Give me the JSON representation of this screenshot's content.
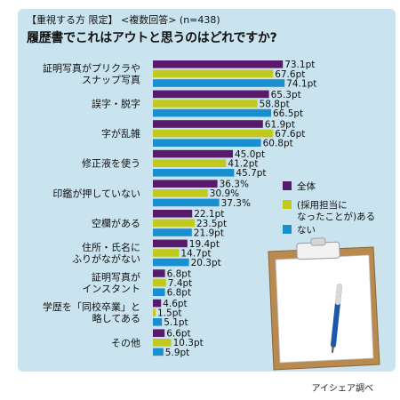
{
  "header": {
    "subhead": "【重視する方 限定】 <複数回答> (n=438)",
    "title": "履歴書でこれはアウトと思うのはどれですか?"
  },
  "footer": {
    "source": "アイシェア調べ"
  },
  "colors": {
    "panel": "#c9e3ef",
    "s1": "#5a1a6b",
    "s2": "#c2c81c",
    "s3": "#1a8fd0"
  },
  "chart_data": {
    "type": "bar",
    "orientation": "horizontal",
    "categories": [
      [
        "証明写真がプリクラや",
        "スナップ写真"
      ],
      [
        "誤字・脱字"
      ],
      [
        "字が乱雑"
      ],
      [
        "修正液を使う"
      ],
      [
        "印鑑が押していない"
      ],
      [
        "空欄がある"
      ],
      [
        "住所・氏名に",
        "ふりがながない"
      ],
      [
        "証明写真が",
        "インスタント"
      ],
      [
        "学歴を「同校卒業」と",
        "略してある"
      ],
      [
        "その他"
      ]
    ],
    "series": [
      {
        "name": "全体",
        "values": [
          73.1,
          65.3,
          61.9,
          45.0,
          36.3,
          22.1,
          19.4,
          6.8,
          4.6,
          6.6
        ],
        "labels": [
          "73.1pt",
          "65.3pt",
          "61.9pt",
          "45.0pt",
          "36.3%",
          "22.1pt",
          "19.4pt",
          "6.8pt",
          "4.6pt",
          "6.6pt"
        ]
      },
      {
        "name": "(採用担当に なったことが)ある",
        "values": [
          67.6,
          58.8,
          67.6,
          41.2,
          30.9,
          23.5,
          14.7,
          7.4,
          1.5,
          10.3
        ],
        "labels": [
          "67.6pt",
          "58.8pt",
          "67.6pt",
          "41.2pt",
          "30.9%",
          "23.5pt",
          "14.7pt",
          "7.4pt",
          "1.5pt",
          "10.3pt"
        ]
      },
      {
        "name": "ない",
        "values": [
          74.1,
          66.5,
          60.8,
          45.7,
          37.3,
          21.9,
          20.3,
          6.8,
          5.1,
          5.9
        ],
        "labels": [
          "74.1pt",
          "66.5pt",
          "60.8pt",
          "45.7pt",
          "37.3%",
          "21.9pt",
          "20.3pt",
          "6.8pt",
          "5.1pt",
          "5.9pt"
        ]
      }
    ],
    "legend": {
      "position": "right",
      "items": [
        [
          "全体"
        ],
        [
          "(採用担当に",
          "なったことが)ある"
        ],
        [
          "ない"
        ]
      ]
    },
    "xlim": [
      0,
      100
    ],
    "grid": false
  }
}
